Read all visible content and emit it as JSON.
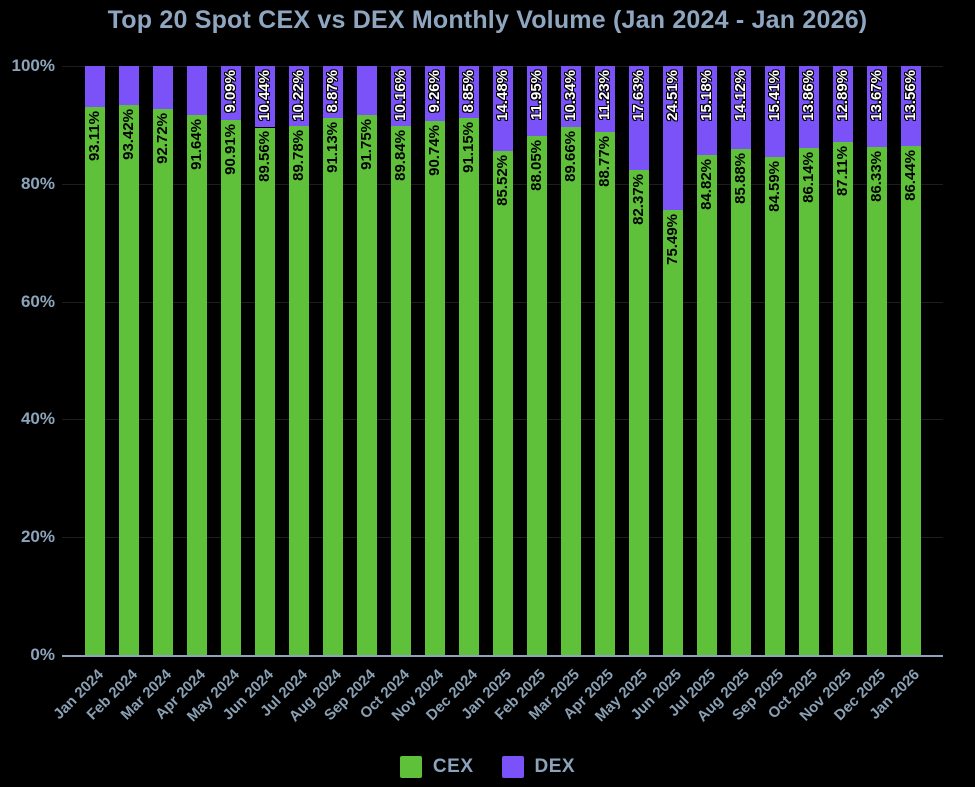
{
  "chart_data": {
    "type": "bar",
    "stacked": true,
    "title": "Top 20 Spot CEX vs DEX Monthly Volume (Jan 2024 - Jan 2026)",
    "categories": [
      "Jan 2024",
      "Feb 2024",
      "Mar 2024",
      "Apr 2024",
      "May 2024",
      "Jun 2024",
      "Jul 2024",
      "Aug 2024",
      "Sep 2024",
      "Oct 2024",
      "Nov 2024",
      "Dec 2024",
      "Jan 2025",
      "Feb 2025",
      "Mar 2025",
      "Apr 2025",
      "May 2025",
      "Jun 2025",
      "Jul 2025",
      "Aug 2025",
      "Sep 2025",
      "Oct 2025",
      "Nov 2025",
      "Dec 2025",
      "Jan 2026"
    ],
    "series": [
      {
        "name": "CEX",
        "color": "#5ec139",
        "values": [
          93.11,
          93.42,
          92.72,
          91.64,
          90.91,
          89.56,
          89.78,
          91.13,
          91.75,
          89.84,
          90.74,
          91.15,
          85.52,
          88.05,
          89.66,
          88.77,
          82.37,
          75.49,
          84.82,
          85.88,
          84.59,
          86.14,
          87.11,
          86.33,
          86.44
        ]
      },
      {
        "name": "DEX",
        "color": "#7b52f7",
        "values": [
          6.89,
          6.58,
          7.28,
          8.36,
          9.09,
          10.44,
          10.22,
          8.87,
          8.25,
          10.16,
          9.26,
          8.85,
          14.48,
          11.95,
          10.34,
          11.23,
          17.63,
          24.51,
          15.18,
          14.12,
          15.41,
          13.86,
          12.89,
          13.67,
          13.56
        ]
      }
    ],
    "bar_labels": {
      "cex": [
        "93.11%",
        "93.42%",
        "92.72%",
        "91.64%",
        "90.91%",
        "89.56%",
        "89.78%",
        "91.13%",
        "91.75%",
        "89.84%",
        "90.74%",
        "91.15%",
        "85.52%",
        "88.05%",
        "89.66%",
        "88.77%",
        "82.37%",
        "75.49%",
        "84.82%",
        "85.88%",
        "84.59%",
        "86.14%",
        "87.11%",
        "86.33%",
        "86.44%"
      ],
      "dex": [
        "",
        "",
        "",
        "",
        "9.09%",
        "10.44%",
        "10.22%",
        "8.87%",
        "",
        "10.16%",
        "9.26%",
        "8.85%",
        "14.48%",
        "11.95%",
        "10.34%",
        "11.23%",
        "17.63%",
        "24.51%",
        "15.18%",
        "14.12%",
        "15.41%",
        "13.86%",
        "12.89%",
        "13.67%",
        "13.56%"
      ]
    },
    "xlabel": "",
    "ylabel": "",
    "ylim": [
      0,
      100
    ],
    "grid": true,
    "legend_position": "bottom"
  },
  "axis": {
    "y_ticks": [
      "100%",
      "80%",
      "60%",
      "40%",
      "20%",
      "0%"
    ]
  },
  "colors": {
    "background": "#000000",
    "cex_green": "#5ec139",
    "dex_purple": "#7b52f7",
    "text_bluegray": "#8ca4bb",
    "axis_line": "#8ca4bb",
    "gridline": "#1e1e1e"
  }
}
